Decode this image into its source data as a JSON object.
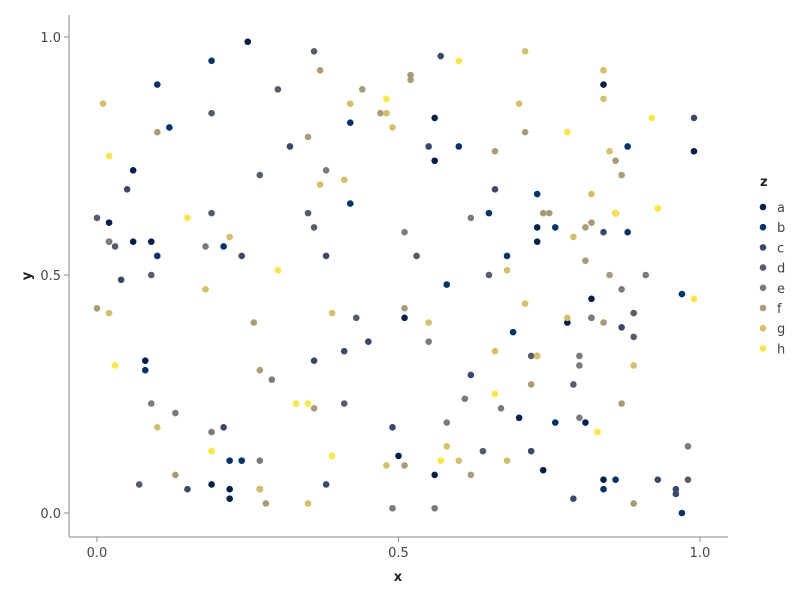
{
  "chart_data": {
    "type": "scatter",
    "xlabel": "x",
    "ylabel": "y",
    "xlim": [
      -0.05,
      1.05
    ],
    "ylim": [
      -0.05,
      1.05
    ],
    "x_ticks": [
      0.0,
      0.5,
      1.0
    ],
    "y_ticks": [
      0.0,
      0.5,
      1.0
    ],
    "x_tick_labels": [
      "0.0",
      "0.5",
      "1.0"
    ],
    "y_tick_labels": [
      "0.0",
      "0.5",
      "1.0"
    ],
    "grid": false,
    "legend": {
      "title": "z",
      "placement": "right"
    },
    "series": [
      {
        "name": "a",
        "color": "#00204d",
        "points": [
          [
            0.25,
            0.99
          ],
          [
            0.06,
            0.72
          ],
          [
            0.02,
            0.61
          ],
          [
            0.06,
            0.57
          ],
          [
            0.09,
            0.57
          ],
          [
            0.08,
            0.32
          ],
          [
            0.19,
            0.06
          ],
          [
            0.22,
            0.05
          ],
          [
            0.22,
            0.03
          ],
          [
            0.27,
            0.05
          ],
          [
            0.56,
            0.83
          ],
          [
            0.56,
            0.74
          ],
          [
            0.51,
            0.41
          ],
          [
            0.5,
            0.12
          ],
          [
            0.56,
            0.08
          ],
          [
            0.7,
            0.2
          ],
          [
            0.73,
            0.6
          ],
          [
            0.73,
            0.57
          ],
          [
            0.74,
            0.09
          ],
          [
            0.78,
            0.4
          ],
          [
            0.81,
            0.19
          ],
          [
            0.82,
            0.45
          ],
          [
            0.84,
            0.9
          ],
          [
            0.84,
            0.07
          ],
          [
            0.99,
            0.76
          ]
        ]
      },
      {
        "name": "b",
        "color": "#00336f",
        "points": [
          [
            0.1,
            0.9
          ],
          [
            0.12,
            0.81
          ],
          [
            0.19,
            0.95
          ],
          [
            0.1,
            0.54
          ],
          [
            0.08,
            0.3
          ],
          [
            0.21,
            0.56
          ],
          [
            0.22,
            0.11
          ],
          [
            0.24,
            0.11
          ],
          [
            0.42,
            0.82
          ],
          [
            0.42,
            0.65
          ],
          [
            0.58,
            0.48
          ],
          [
            0.6,
            0.77
          ],
          [
            0.65,
            0.63
          ],
          [
            0.68,
            0.54
          ],
          [
            0.69,
            0.38
          ],
          [
            0.73,
            0.67
          ],
          [
            0.76,
            0.6
          ],
          [
            0.76,
            0.19
          ],
          [
            0.84,
            0.05
          ],
          [
            0.86,
            0.07
          ],
          [
            0.88,
            0.77
          ],
          [
            0.88,
            0.59
          ],
          [
            0.97,
            0.46
          ],
          [
            0.97,
            0.0
          ]
        ]
      },
      {
        "name": "c",
        "color": "#39486b",
        "points": [
          [
            0.05,
            0.68
          ],
          [
            0.04,
            0.49
          ],
          [
            0.24,
            0.54
          ],
          [
            0.21,
            0.18
          ],
          [
            0.15,
            0.05
          ],
          [
            0.32,
            0.77
          ],
          [
            0.38,
            0.54
          ],
          [
            0.36,
            0.32
          ],
          [
            0.38,
            0.06
          ],
          [
            0.41,
            0.34
          ],
          [
            0.45,
            0.36
          ],
          [
            0.49,
            0.18
          ],
          [
            0.55,
            0.77
          ],
          [
            0.57,
            0.96
          ],
          [
            0.62,
            0.29
          ],
          [
            0.66,
            0.68
          ],
          [
            0.72,
            0.13
          ],
          [
            0.79,
            0.03
          ],
          [
            0.82,
            0.41
          ],
          [
            0.84,
            0.59
          ],
          [
            0.86,
            0.63
          ],
          [
            0.87,
            0.39
          ],
          [
            0.93,
            0.07
          ],
          [
            0.96,
            0.05
          ],
          [
            0.96,
            0.04
          ],
          [
            0.99,
            0.83
          ]
        ]
      },
      {
        "name": "d",
        "color": "#575c6d",
        "points": [
          [
            0.0,
            0.62
          ],
          [
            0.02,
            0.57
          ],
          [
            0.03,
            0.56
          ],
          [
            0.09,
            0.5
          ],
          [
            0.07,
            0.06
          ],
          [
            0.19,
            0.84
          ],
          [
            0.19,
            0.63
          ],
          [
            0.27,
            0.71
          ],
          [
            0.3,
            0.89
          ],
          [
            0.36,
            0.97
          ],
          [
            0.36,
            0.6
          ],
          [
            0.35,
            0.63
          ],
          [
            0.43,
            0.41
          ],
          [
            0.41,
            0.23
          ],
          [
            0.53,
            0.54
          ],
          [
            0.64,
            0.13
          ],
          [
            0.65,
            0.5
          ],
          [
            0.72,
            0.33
          ],
          [
            0.79,
            0.27
          ],
          [
            0.86,
            0.63
          ],
          [
            0.89,
            0.37
          ],
          [
            0.89,
            0.42
          ],
          [
            0.98,
            0.07
          ]
        ]
      },
      {
        "name": "e",
        "color": "#7c7b78",
        "points": [
          [
            0.02,
            0.57
          ],
          [
            0.09,
            0.23
          ],
          [
            0.13,
            0.21
          ],
          [
            0.18,
            0.56
          ],
          [
            0.19,
            0.17
          ],
          [
            0.27,
            0.11
          ],
          [
            0.29,
            0.28
          ],
          [
            0.38,
            0.72
          ],
          [
            0.49,
            0.01
          ],
          [
            0.51,
            0.59
          ],
          [
            0.55,
            0.36
          ],
          [
            0.56,
            0.01
          ],
          [
            0.58,
            0.19
          ],
          [
            0.61,
            0.24
          ],
          [
            0.62,
            0.62
          ],
          [
            0.67,
            0.22
          ],
          [
            0.73,
            0.33
          ],
          [
            0.8,
            0.33
          ],
          [
            0.8,
            0.31
          ],
          [
            0.8,
            0.2
          ],
          [
            0.82,
            0.41
          ],
          [
            0.87,
            0.47
          ],
          [
            0.91,
            0.5
          ],
          [
            0.98,
            0.14
          ]
        ]
      },
      {
        "name": "f",
        "color": "#a69d75",
        "points": [
          [
            0.0,
            0.43
          ],
          [
            0.1,
            0.8
          ],
          [
            0.13,
            0.08
          ],
          [
            0.26,
            0.4
          ],
          [
            0.27,
            0.3
          ],
          [
            0.28,
            0.02
          ],
          [
            0.37,
            0.93
          ],
          [
            0.35,
            0.79
          ],
          [
            0.36,
            0.22
          ],
          [
            0.44,
            0.89
          ],
          [
            0.47,
            0.84
          ],
          [
            0.51,
            0.43
          ],
          [
            0.52,
            0.91
          ],
          [
            0.52,
            0.92
          ],
          [
            0.51,
            0.1
          ],
          [
            0.62,
            0.08
          ],
          [
            0.66,
            0.76
          ],
          [
            0.71,
            0.8
          ],
          [
            0.74,
            0.63
          ],
          [
            0.75,
            0.63
          ],
          [
            0.72,
            0.27
          ],
          [
            0.81,
            0.53
          ],
          [
            0.81,
            0.6
          ],
          [
            0.82,
            0.61
          ],
          [
            0.85,
            0.5
          ],
          [
            0.86,
            0.74
          ],
          [
            0.87,
            0.71
          ],
          [
            0.87,
            0.23
          ],
          [
            0.89,
            0.02
          ],
          [
            0.84,
            0.4
          ]
        ]
      },
      {
        "name": "g",
        "color": "#d3c164",
        "points": [
          [
            0.01,
            0.86
          ],
          [
            0.02,
            0.42
          ],
          [
            0.1,
            0.18
          ],
          [
            0.18,
            0.47
          ],
          [
            0.22,
            0.58
          ],
          [
            0.27,
            0.05
          ],
          [
            0.35,
            0.02
          ],
          [
            0.37,
            0.69
          ],
          [
            0.39,
            0.42
          ],
          [
            0.41,
            0.7
          ],
          [
            0.42,
            0.86
          ],
          [
            0.48,
            0.84
          ],
          [
            0.49,
            0.81
          ],
          [
            0.48,
            0.1
          ],
          [
            0.55,
            0.4
          ],
          [
            0.58,
            0.14
          ],
          [
            0.6,
            0.11
          ],
          [
            0.66,
            0.34
          ],
          [
            0.68,
            0.51
          ],
          [
            0.7,
            0.86
          ],
          [
            0.71,
            0.97
          ],
          [
            0.71,
            0.44
          ],
          [
            0.68,
            0.11
          ],
          [
            0.73,
            0.33
          ],
          [
            0.78,
            0.41
          ],
          [
            0.79,
            0.58
          ],
          [
            0.82,
            0.67
          ],
          [
            0.84,
            0.87
          ],
          [
            0.84,
            0.93
          ],
          [
            0.85,
            0.76
          ],
          [
            0.89,
            0.31
          ]
        ]
      },
      {
        "name": "h",
        "color": "#fde737",
        "points": [
          [
            0.02,
            0.75
          ],
          [
            0.03,
            0.31
          ],
          [
            0.15,
            0.62
          ],
          [
            0.19,
            0.13
          ],
          [
            0.3,
            0.51
          ],
          [
            0.33,
            0.23
          ],
          [
            0.35,
            0.23
          ],
          [
            0.39,
            0.12
          ],
          [
            0.48,
            0.87
          ],
          [
            0.57,
            0.11
          ],
          [
            0.6,
            0.95
          ],
          [
            0.66,
            0.25
          ],
          [
            0.78,
            0.8
          ],
          [
            0.83,
            0.17
          ],
          [
            0.86,
            0.63
          ],
          [
            0.92,
            0.83
          ],
          [
            0.93,
            0.64
          ],
          [
            0.99,
            0.45
          ]
        ]
      }
    ]
  }
}
